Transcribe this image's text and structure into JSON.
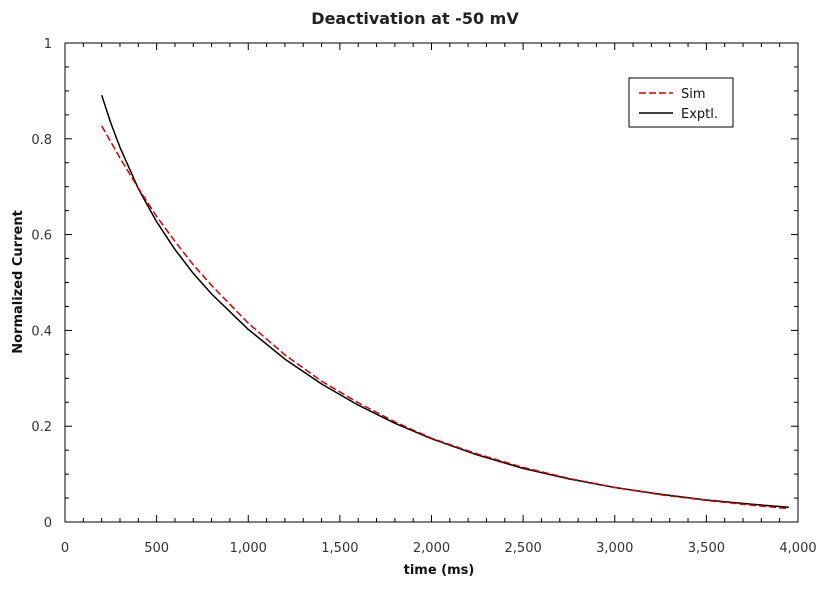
{
  "chart_data": {
    "type": "line",
    "title": "Deactivation at -50 mV",
    "xlabel": "time (ms)",
    "ylabel": "Normalized Current",
    "xlim": [
      0,
      4000
    ],
    "ylim": [
      0,
      1
    ],
    "x_ticks": [
      {
        "value": 0,
        "label": "0"
      },
      {
        "value": 500,
        "label": "500"
      },
      {
        "value": 1000,
        "label": "1,000"
      },
      {
        "value": 1500,
        "label": "1,500"
      },
      {
        "value": 2000,
        "label": "2,000"
      },
      {
        "value": 2500,
        "label": "2,500"
      },
      {
        "value": 3000,
        "label": "3,000"
      },
      {
        "value": 3500,
        "label": "3,500"
      },
      {
        "value": 4000,
        "label": "4,000"
      }
    ],
    "y_ticks": [
      {
        "value": 0,
        "label": "0"
      },
      {
        "value": 0.2,
        "label": "0.2"
      },
      {
        "value": 0.4,
        "label": "0.4"
      },
      {
        "value": 0.6,
        "label": "0.6"
      },
      {
        "value": 0.8,
        "label": "0.8"
      },
      {
        "value": 1,
        "label": "1"
      }
    ],
    "grid": false,
    "legend_position": "top-right",
    "series": [
      {
        "name": "Sim",
        "color": "#cc0000",
        "dash": "dashed",
        "x": [
          200,
          300,
          400,
          500,
          600,
          700,
          800,
          1000,
          1200,
          1400,
          1600,
          1800,
          2000,
          2250,
          2500,
          2750,
          3000,
          3250,
          3500,
          3750,
          3950
        ],
        "y": [
          0.827,
          0.76,
          0.697,
          0.638,
          0.586,
          0.537,
          0.494,
          0.415,
          0.349,
          0.294,
          0.249,
          0.209,
          0.175,
          0.142,
          0.114,
          0.091,
          0.072,
          0.057,
          0.045,
          0.035,
          0.028
        ]
      },
      {
        "name": "Exptl.",
        "color": "#000000",
        "dash": "solid",
        "x": [
          200,
          250,
          300,
          400,
          500,
          600,
          700,
          800,
          1000,
          1200,
          1400,
          1600,
          1800,
          2000,
          2250,
          2500,
          2750,
          3000,
          3250,
          3500,
          3750,
          3950
        ],
        "y": [
          0.891,
          0.833,
          0.782,
          0.696,
          0.627,
          0.569,
          0.519,
          0.476,
          0.402,
          0.34,
          0.288,
          0.244,
          0.206,
          0.174,
          0.14,
          0.112,
          0.09,
          0.072,
          0.058,
          0.046,
          0.037,
          0.031
        ]
      }
    ]
  }
}
